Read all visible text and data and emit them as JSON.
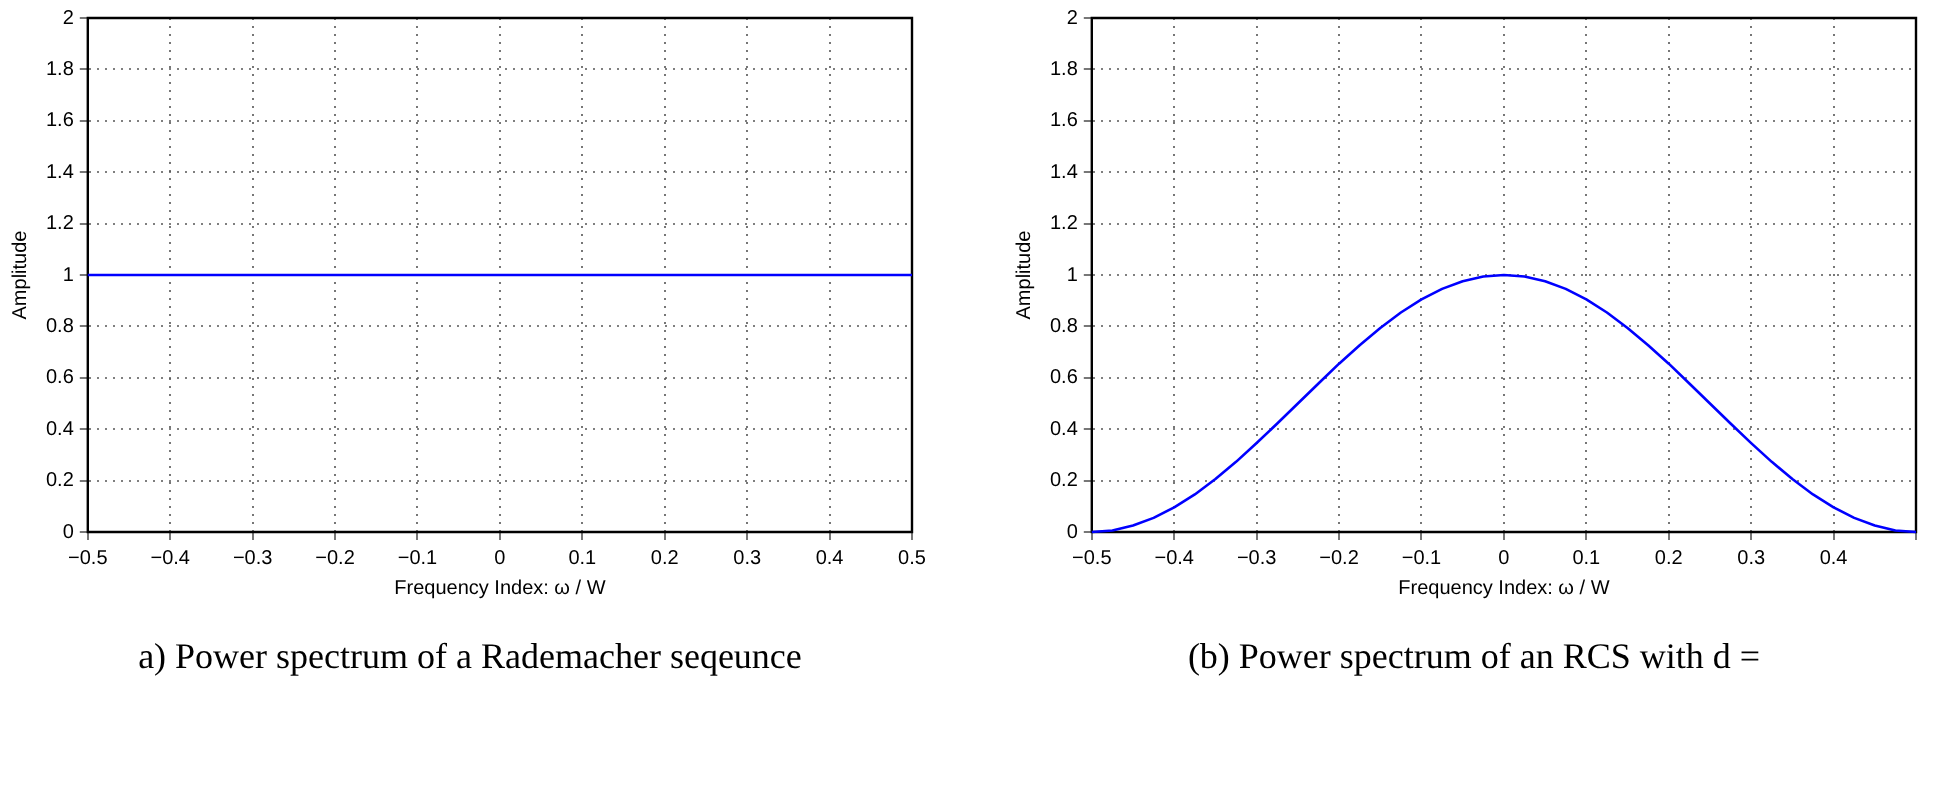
{
  "chart_data": [
    {
      "type": "line",
      "xlabel": "Frequency Index: ω / W",
      "ylabel": "Amplitude",
      "annotations": [
        "a) Power spectrum of a Rademacher seqeunce"
      ],
      "x": [
        -0.5,
        0.5
      ],
      "series": [
        {
          "color": "#0000ff",
          "values": [
            1,
            1
          ]
        }
      ],
      "xlim": [
        -0.5,
        0.5
      ],
      "xticks": [
        -0.5,
        -0.4,
        -0.3,
        -0.2,
        -0.1,
        0,
        0.1,
        0.2,
        0.3,
        0.4,
        0.5
      ],
      "ylim": [
        0,
        2
      ],
      "yticks": [
        0,
        0.2,
        0.4,
        0.6,
        0.8,
        1,
        1.2,
        1.4,
        1.6,
        1.8,
        2
      ],
      "grid": true,
      "line_style": "solid"
    },
    {
      "type": "line",
      "xlabel": "Frequency Index: ω / W",
      "ylabel": "Amplitude",
      "annotations": [
        "(b) Power spectrum of an RCS with d ="
      ],
      "x": [
        -0.5,
        -0.475,
        -0.45,
        -0.425,
        -0.4,
        -0.375,
        -0.35,
        -0.325,
        -0.3,
        -0.275,
        -0.25,
        -0.225,
        -0.2,
        -0.175,
        -0.15,
        -0.125,
        -0.1,
        -0.075,
        -0.05,
        -0.025,
        0,
        0.025,
        0.05,
        0.075,
        0.1,
        0.125,
        0.15,
        0.175,
        0.2,
        0.225,
        0.25,
        0.275,
        0.3,
        0.325,
        0.35,
        0.375,
        0.4,
        0.425,
        0.45,
        0.475,
        0.5
      ],
      "series": [
        {
          "color": "#0000ff",
          "values": [
            0,
            0.006,
            0.025,
            0.055,
            0.096,
            0.146,
            0.206,
            0.273,
            0.346,
            0.422,
            0.5,
            0.578,
            0.655,
            0.727,
            0.794,
            0.854,
            0.905,
            0.946,
            0.976,
            0.994,
            1,
            0.994,
            0.976,
            0.946,
            0.905,
            0.854,
            0.794,
            0.727,
            0.655,
            0.578,
            0.5,
            0.422,
            0.346,
            0.273,
            0.206,
            0.146,
            0.096,
            0.055,
            0.025,
            0.006,
            0
          ]
        }
      ],
      "xlim": [
        -0.5,
        0.5
      ],
      "xticks": [
        -0.5,
        -0.4,
        -0.3,
        -0.2,
        -0.1,
        0,
        0.1,
        0.2,
        0.3,
        0.4,
        {
          "value": 0.5,
          "label": null
        }
      ],
      "ylim": [
        0,
        2
      ],
      "yticks": [
        0,
        0.2,
        0.4,
        0.6,
        0.8,
        1,
        1.2,
        1.4,
        1.6,
        1.8,
        2
      ],
      "grid": true,
      "line_style": "solid"
    }
  ]
}
